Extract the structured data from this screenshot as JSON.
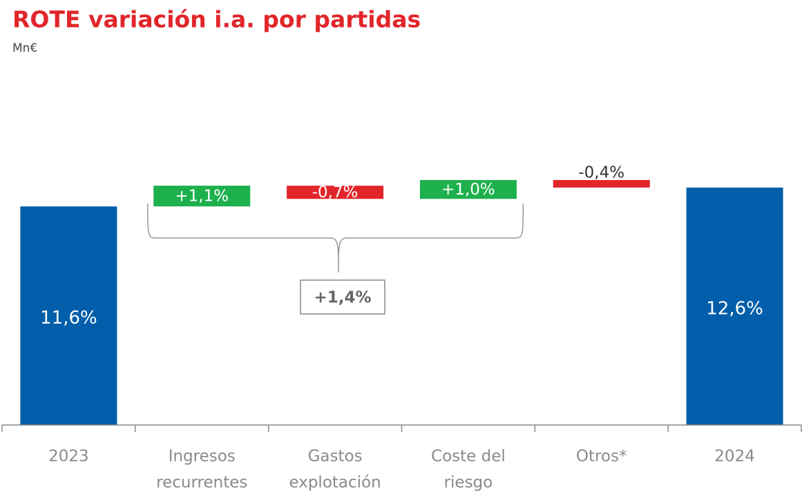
{
  "chart_data": {
    "type": "waterfall",
    "title": "ROTE variación i.a. por partidas",
    "subtitle": "Mn€",
    "categories": [
      [
        "2023"
      ],
      [
        "Ingresos",
        "recurrentes"
      ],
      [
        "Gastos",
        "explotación"
      ],
      [
        "Coste del",
        "riesgo"
      ],
      [
        "Otros*"
      ],
      [
        "2024"
      ]
    ],
    "measure": [
      "absolute",
      "relative",
      "relative",
      "relative",
      "relative",
      "total"
    ],
    "values": [
      11.6,
      1.1,
      -0.7,
      1.0,
      -0.4,
      12.6
    ],
    "value_labels": [
      "11,6%",
      "+1,1%",
      "-0,7%",
      "+1,0%",
      "-0,4%",
      "12,6%"
    ],
    "total_color": "#005eaa",
    "increase_color": "#1db04d",
    "decrease_color": "#e1262b",
    "ylim": [
      0,
      16
    ],
    "annotation": {
      "text": "+1,4%"
    }
  }
}
